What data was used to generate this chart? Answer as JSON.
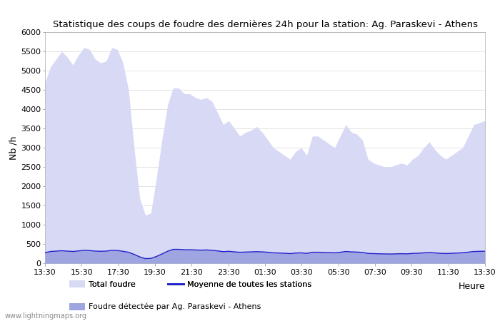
{
  "title": "Statistique des coups de foudre des dernières 24h pour la station: Ag. Paraskevi - Athens",
  "xlabel": "Heure",
  "ylabel": "Nb /h",
  "ylim": [
    0,
    6000
  ],
  "yticks": [
    0,
    500,
    1000,
    1500,
    2000,
    2500,
    3000,
    3500,
    4000,
    4500,
    5000,
    5500,
    6000
  ],
  "x_labels": [
    "13:30",
    "15:30",
    "17:30",
    "19:30",
    "21:30",
    "23:30",
    "01:30",
    "03:30",
    "05:30",
    "07:30",
    "09:30",
    "11:30",
    "13:30"
  ],
  "background_color": "#ffffff",
  "fill_total_color": "#d8daf5",
  "fill_local_color": "#9fa5e0",
  "line_color": "#2222cc",
  "watermark": "www.lightningmaps.org",
  "legend": {
    "total_label": "Total foudre",
    "moyenne_label": "Moyenne de toutes les stations",
    "local_label": "Foudre détectée par Ag. Paraskevi - Athens"
  },
  "total_foudre": [
    4700,
    5100,
    5300,
    5500,
    5350,
    5150,
    5400,
    5600,
    5550,
    5300,
    5200,
    5250,
    5600,
    5550,
    5200,
    4500,
    3000,
    1700,
    1250,
    1300,
    2200,
    3200,
    4100,
    4550,
    4550,
    4400,
    4400,
    4300,
    4250,
    4300,
    4200,
    3900,
    3600,
    3700,
    3500,
    3300,
    3400,
    3450,
    3550,
    3400,
    3200,
    3000,
    2900,
    2800,
    2700,
    2900,
    3000,
    2800,
    3300,
    3300,
    3200,
    3100,
    3000,
    3300,
    3600,
    3400,
    3350,
    3200,
    2700,
    2600,
    2550,
    2500,
    2500,
    2550,
    2600,
    2550,
    2700,
    2800,
    3000,
    3150,
    2950,
    2800,
    2700,
    2800,
    2900,
    3000,
    3300,
    3600,
    3650,
    3700
  ],
  "local_foudre": [
    280,
    310,
    320,
    330,
    320,
    310,
    325,
    340,
    335,
    320,
    315,
    320,
    340,
    335,
    315,
    290,
    240,
    180,
    130,
    135,
    185,
    250,
    320,
    370,
    370,
    360,
    360,
    355,
    350,
    355,
    345,
    330,
    310,
    320,
    305,
    295,
    300,
    305,
    310,
    305,
    295,
    280,
    275,
    270,
    260,
    275,
    280,
    265,
    295,
    295,
    290,
    285,
    280,
    295,
    315,
    305,
    300,
    290,
    265,
    260,
    255,
    252,
    250,
    253,
    258,
    254,
    265,
    270,
    280,
    288,
    278,
    268,
    262,
    268,
    275,
    282,
    298,
    315,
    318,
    322
  ],
  "moyenne": [
    275,
    305,
    315,
    325,
    315,
    305,
    320,
    335,
    330,
    315,
    310,
    315,
    335,
    330,
    310,
    285,
    230,
    165,
    120,
    125,
    175,
    240,
    310,
    360,
    360,
    350,
    350,
    345,
    340,
    345,
    335,
    320,
    300,
    310,
    295,
    285,
    290,
    295,
    300,
    295,
    285,
    270,
    265,
    260,
    250,
    265,
    270,
    255,
    285,
    285,
    280,
    275,
    270,
    285,
    305,
    295,
    290,
    280,
    255,
    250,
    245,
    242,
    240,
    243,
    248,
    244,
    255,
    260,
    270,
    278,
    268,
    258,
    252,
    258,
    265,
    272,
    288,
    305,
    308,
    312
  ]
}
